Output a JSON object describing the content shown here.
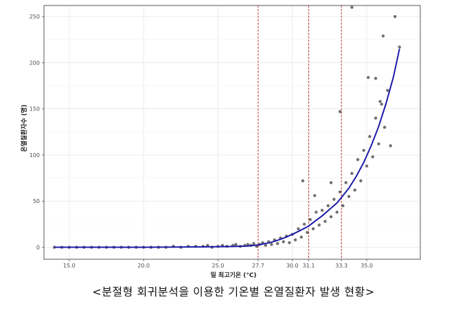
{
  "caption": "<분절형 회귀분석을 이용한 기온별 온열질환자 발생 현황>",
  "chart_data": {
    "type": "scatter",
    "xlabel": "일 최고기온 (°C)",
    "ylabel": "온열질환자수 (명)",
    "xlim": [
      13.3,
      38.6
    ],
    "ylim": [
      -13,
      262
    ],
    "x_ticks": [
      15.0,
      20.0,
      25.0,
      27.7,
      30.0,
      31.1,
      33.3,
      35.0
    ],
    "x_tick_labels": [
      "15.0",
      "20.0",
      "25.0",
      "27.7",
      "30.0",
      "31.1",
      "33.3",
      "35.0"
    ],
    "y_ticks": [
      0,
      50,
      100,
      150,
      200,
      250
    ],
    "y_tick_labels": [
      "0",
      "50",
      "100",
      "150",
      "200",
      "250"
    ],
    "breakpoints": [
      27.7,
      31.1,
      33.3
    ],
    "grid": true,
    "colors": {
      "points": "#222222",
      "fit_line": "#1a1aa8",
      "breakpoint_line": "#c0392b",
      "panel_border": "#555555"
    },
    "fit_curve": {
      "x": [
        14.0,
        20.0,
        25.0,
        26.0,
        27.0,
        27.7,
        28.5,
        29.0,
        29.5,
        30.0,
        30.5,
        31.1,
        31.5,
        32.0,
        32.5,
        33.0,
        33.3,
        33.8,
        34.3,
        34.8,
        35.3,
        35.8,
        36.3,
        36.8,
        37.2
      ],
      "y": [
        0,
        0,
        0.5,
        0.8,
        1.3,
        2.5,
        5,
        7.5,
        10.5,
        14,
        18,
        23,
        28,
        34,
        41,
        48,
        54,
        64,
        77,
        92,
        110,
        131,
        156,
        185,
        215
      ]
    },
    "series": [
      {
        "values": [
          [
            14.0,
            0
          ],
          [
            14.5,
            0
          ],
          [
            15.0,
            0
          ],
          [
            15.5,
            0
          ],
          [
            16.0,
            0
          ],
          [
            16.5,
            0
          ],
          [
            17.0,
            0
          ],
          [
            17.5,
            0
          ],
          [
            18.0,
            0
          ],
          [
            18.5,
            0
          ],
          [
            19.0,
            0
          ],
          [
            19.5,
            0
          ],
          [
            20.0,
            0
          ],
          [
            20.5,
            0
          ],
          [
            21.0,
            0
          ],
          [
            21.5,
            0
          ],
          [
            22.0,
            1
          ],
          [
            22.5,
            0
          ],
          [
            23.0,
            1
          ],
          [
            23.5,
            1
          ],
          [
            24.0,
            1
          ],
          [
            24.3,
            2
          ],
          [
            24.6,
            0
          ],
          [
            25.0,
            1
          ],
          [
            25.3,
            2
          ],
          [
            25.6,
            1
          ],
          [
            26.0,
            2
          ],
          [
            26.2,
            3
          ],
          [
            26.5,
            1
          ],
          [
            26.8,
            2
          ],
          [
            27.0,
            3
          ],
          [
            27.2,
            2
          ],
          [
            27.4,
            4
          ],
          [
            27.6,
            1
          ],
          [
            27.8,
            3
          ],
          [
            28.0,
            5
          ],
          [
            28.2,
            2
          ],
          [
            28.4,
            6
          ],
          [
            28.6,
            3
          ],
          [
            28.8,
            8
          ],
          [
            29.0,
            4
          ],
          [
            29.2,
            10
          ],
          [
            29.4,
            6
          ],
          [
            29.6,
            12
          ],
          [
            29.8,
            5
          ],
          [
            30.0,
            14
          ],
          [
            30.2,
            8
          ],
          [
            30.4,
            20
          ],
          [
            30.6,
            11
          ],
          [
            30.8,
            25
          ],
          [
            31.0,
            16
          ],
          [
            31.2,
            30
          ],
          [
            31.4,
            20
          ],
          [
            31.6,
            38
          ],
          [
            31.8,
            24
          ],
          [
            32.0,
            40
          ],
          [
            32.2,
            28
          ],
          [
            32.4,
            45
          ],
          [
            32.6,
            33
          ],
          [
            32.8,
            52
          ],
          [
            33.0,
            38
          ],
          [
            33.2,
            60
          ],
          [
            33.4,
            45
          ],
          [
            33.6,
            70
          ],
          [
            33.8,
            55
          ],
          [
            34.0,
            80
          ],
          [
            34.2,
            62
          ],
          [
            34.4,
            95
          ],
          [
            34.6,
            72
          ],
          [
            34.8,
            105
          ],
          [
            35.0,
            88
          ],
          [
            35.2,
            120
          ],
          [
            35.4,
            98
          ],
          [
            35.6,
            140
          ],
          [
            35.8,
            112
          ],
          [
            36.0,
            155
          ],
          [
            36.2,
            130
          ],
          [
            36.4,
            170
          ],
          [
            36.6,
            110
          ],
          [
            36.9,
            250
          ],
          [
            37.2,
            217
          ],
          [
            36.1,
            229
          ],
          [
            34.0,
            260
          ],
          [
            33.2,
            147
          ],
          [
            35.1,
            184
          ],
          [
            35.6,
            183
          ],
          [
            35.9,
            158
          ],
          [
            30.7,
            72
          ],
          [
            31.5,
            56
          ],
          [
            32.6,
            70
          ]
        ]
      }
    ]
  }
}
